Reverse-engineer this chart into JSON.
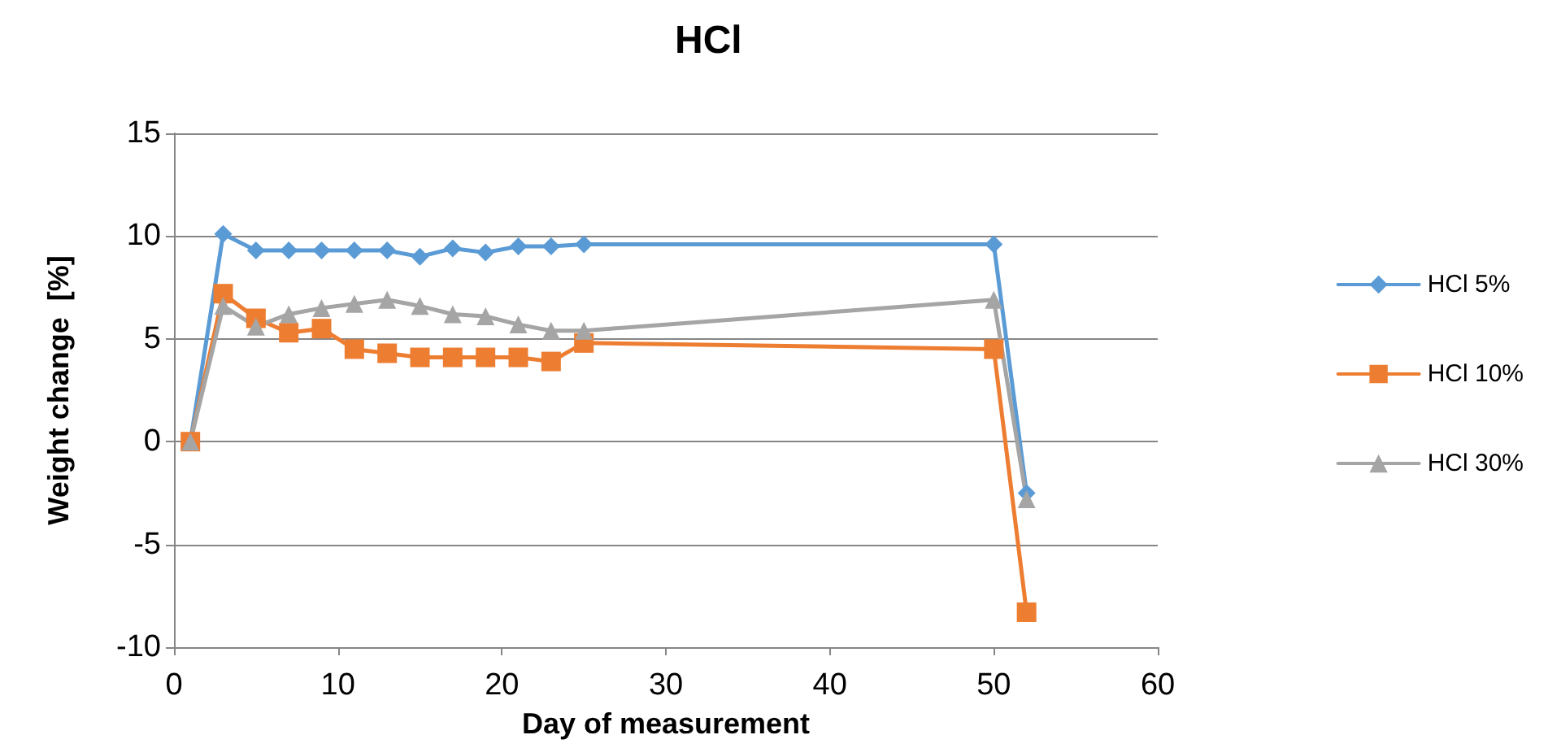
{
  "chart_data": {
    "type": "line",
    "title": "HCl",
    "xlabel": "Day of measurement",
    "ylabel": "Weight change  [%]",
    "x": [
      1,
      3,
      5,
      7,
      9,
      11,
      13,
      15,
      17,
      19,
      21,
      23,
      25,
      50,
      52
    ],
    "series": [
      {
        "name": "HCl 5%",
        "color": "#5b9bd5",
        "marker": "diamond",
        "values": [
          0,
          10.1,
          9.3,
          9.3,
          9.3,
          9.3,
          9.3,
          9.0,
          9.4,
          9.2,
          9.5,
          9.5,
          9.6,
          9.6,
          -2.5
        ]
      },
      {
        "name": "HCl 10%",
        "color": "#ed7d31",
        "marker": "square",
        "values": [
          0,
          7.2,
          6.0,
          5.3,
          5.5,
          4.5,
          4.3,
          4.1,
          4.1,
          4.1,
          4.1,
          3.9,
          4.8,
          4.5,
          -8.3
        ]
      },
      {
        "name": "HCl 30%",
        "color": "#a5a5a5",
        "marker": "triangle",
        "values": [
          0,
          6.6,
          5.6,
          6.2,
          6.5,
          6.7,
          6.9,
          6.6,
          6.2,
          6.1,
          5.7,
          5.4,
          5.4,
          6.9,
          -2.8
        ]
      }
    ],
    "xlim": [
      0,
      60
    ],
    "xticks": [
      0,
      10,
      20,
      30,
      40,
      50,
      60
    ],
    "ylim": [
      -10,
      15
    ],
    "yticks": [
      -10,
      -5,
      0,
      5,
      10,
      15
    ],
    "grid": "y",
    "legend": "right"
  }
}
